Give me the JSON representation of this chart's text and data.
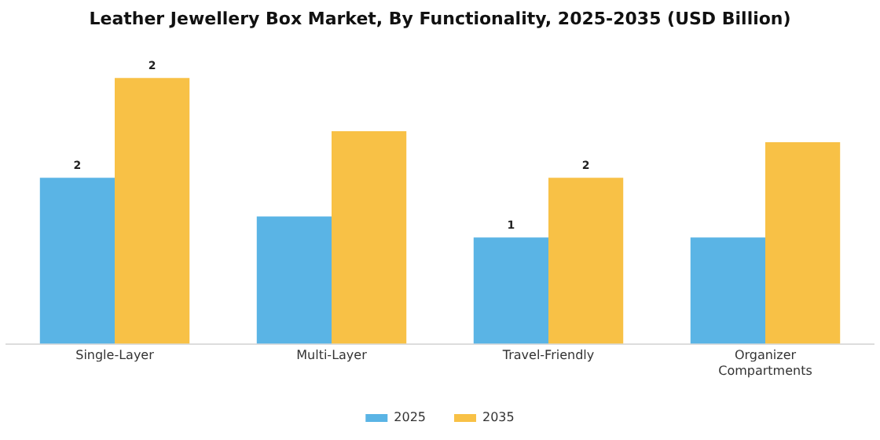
{
  "chart_data": {
    "type": "bar",
    "title": "Leather Jewellery Box Market, By Functionality, 2025-2035 (USD Billion)",
    "categories": [
      "Single-Layer",
      "Multi-Layer",
      "Travel-Friendly",
      "Organizer Compartments"
    ],
    "series": [
      {
        "name": "2025",
        "color": "#5ab4e5",
        "values": [
          1.5,
          1.15,
          0.96,
          0.96
        ],
        "value_labels": [
          "2",
          null,
          "1",
          null
        ]
      },
      {
        "name": "2035",
        "color": "#f8c146",
        "values": [
          2.4,
          1.92,
          1.5,
          1.82
        ],
        "value_labels": [
          "2",
          null,
          "2",
          null
        ]
      }
    ],
    "tick_labels": "x",
    "legend": "bottom",
    "grid": false
  }
}
